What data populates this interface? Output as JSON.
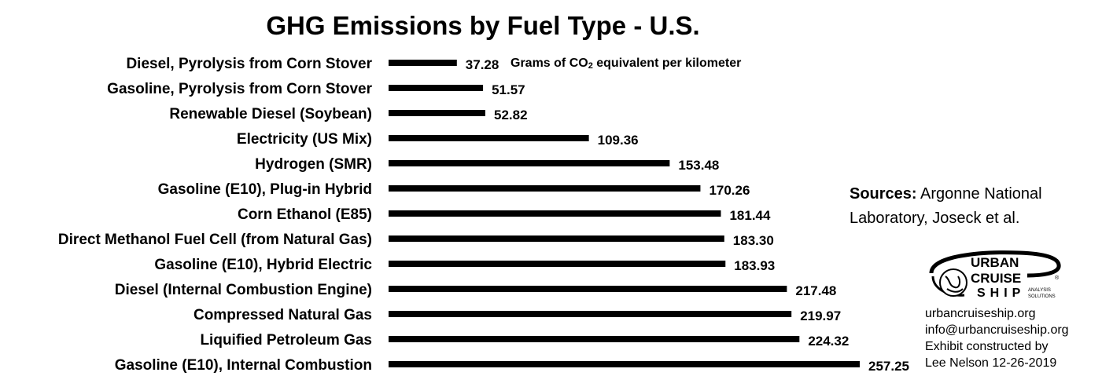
{
  "chart_data": {
    "type": "bar",
    "orientation": "horizontal",
    "title": "GHG Emissions by Fuel Type - U.S.",
    "unit_label": {
      "before_sub": "Grams of CO",
      "sub": "2",
      "after_sub": " equivalent per kilometer"
    },
    "categories": [
      "Diesel, Pyrolysis from Corn Stover",
      "Gasoline, Pyrolysis from Corn Stover",
      "Renewable Diesel (Soybean)",
      "Electricity (US Mix)",
      "Hydrogen (SMR)",
      "Gasoline (E10), Plug-in Hybrid",
      "Corn Ethanol (E85)",
      "Direct Methanol Fuel Cell (from Natural Gas)",
      "Gasoline (E10), Hybrid Electric",
      "Diesel (Internal Combustion Engine)",
      "Compressed Natural Gas",
      "Liquified Petroleum Gas",
      "Gasoline (E10), Internal Combustion"
    ],
    "values": [
      37.28,
      51.57,
      52.82,
      109.36,
      153.48,
      170.26,
      181.44,
      183.3,
      183.93,
      217.48,
      219.97,
      224.32,
      257.25
    ],
    "value_labels": [
      "37.28",
      "51.57",
      "52.82",
      "109.36",
      "153.48",
      "170.26",
      "181.44",
      "183.30",
      "183.93",
      "217.48",
      "219.97",
      "224.32",
      "257.25"
    ],
    "xlim": [
      0,
      257.25
    ],
    "grid": false,
    "bar_color": "#000000"
  },
  "sources": {
    "label": "Sources:",
    "line1": " Argonne National",
    "line2": "Laboratory, Joseck et al."
  },
  "logo": {
    "word1": "URBAN",
    "word2": "CRUISE",
    "word3": "SHIP",
    "tag1": "ANALYSIS",
    "tag2": "SOLUTIONS",
    "mark": "®"
  },
  "credits": {
    "website": "urbancruiseship.org",
    "email": "info@urbancruiseship.org",
    "line3": "Exhibit constructed by",
    "line4": "Lee Nelson 12-26-2019"
  }
}
